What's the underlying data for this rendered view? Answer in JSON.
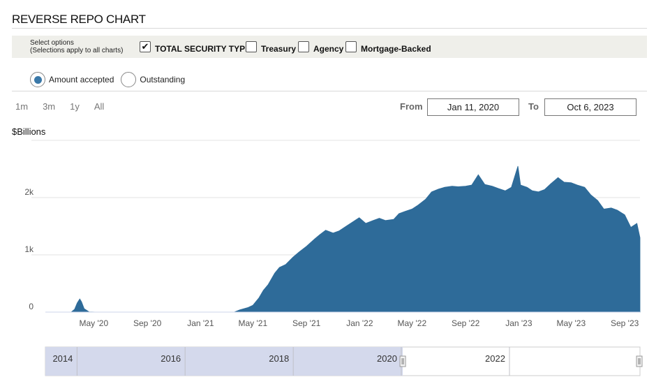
{
  "page": {
    "title": "REVERSE REPO CHART"
  },
  "options": {
    "caption_line1": "Select options",
    "caption_line2": "(Selections apply to all charts)",
    "checkboxes": [
      {
        "label": "TOTAL SECURITY TYPES",
        "checked": true
      },
      {
        "label": "Treasury",
        "checked": false
      },
      {
        "label": "Agency",
        "checked": false
      },
      {
        "label": "Mortgage-Backed",
        "checked": false
      }
    ],
    "check_glyph": "✔"
  },
  "radios": [
    {
      "label": "Amount accepted",
      "selected": true
    },
    {
      "label": "Outstanding",
      "selected": false
    }
  ],
  "range_buttons": [
    "1m",
    "3m",
    "1y",
    "All"
  ],
  "date_range": {
    "from_label": "From",
    "from_value": "Jan 11, 2020",
    "to_label": "To",
    "to_value": "Oct 6, 2023"
  },
  "colors": {
    "series": "#2e6b99",
    "navigator_selected": "#d4d9ec",
    "grid": "#e3e3e3"
  },
  "chart_data": {
    "type": "area",
    "title": "",
    "ylabel": "$Billions",
    "xlabel": "",
    "ylim": [
      0,
      3000
    ],
    "x_range": [
      "2020-01-11",
      "2023-10-06"
    ],
    "y_ticks": [
      {
        "value": 0,
        "label": "0"
      },
      {
        "value": 1000,
        "label": "1k"
      },
      {
        "value": 2000,
        "label": "2k"
      }
    ],
    "x_ticks": [
      {
        "date": "2020-05-01",
        "label": "May '20"
      },
      {
        "date": "2020-09-01",
        "label": "Sep '20"
      },
      {
        "date": "2021-01-01",
        "label": "Jan '21"
      },
      {
        "date": "2021-05-01",
        "label": "May '21"
      },
      {
        "date": "2021-09-01",
        "label": "Sep '21"
      },
      {
        "date": "2022-01-01",
        "label": "Jan '22"
      },
      {
        "date": "2022-05-01",
        "label": "May '22"
      },
      {
        "date": "2022-09-01",
        "label": "Sep '22"
      },
      {
        "date": "2023-01-01",
        "label": "Jan '23"
      },
      {
        "date": "2023-05-01",
        "label": "May '23"
      },
      {
        "date": "2023-09-01",
        "label": "Sep '23"
      }
    ],
    "grid": true,
    "series": [
      {
        "points": [
          [
            "2020-01-11",
            0
          ],
          [
            "2020-03-10",
            0
          ],
          [
            "2020-03-18",
            50
          ],
          [
            "2020-03-24",
            160
          ],
          [
            "2020-03-30",
            230
          ],
          [
            "2020-04-03",
            180
          ],
          [
            "2020-04-09",
            60
          ],
          [
            "2020-04-20",
            5
          ],
          [
            "2020-05-10",
            0
          ],
          [
            "2021-01-01",
            0
          ],
          [
            "2021-03-20",
            2
          ],
          [
            "2021-04-01",
            40
          ],
          [
            "2021-04-20",
            80
          ],
          [
            "2021-05-01",
            120
          ],
          [
            "2021-05-15",
            250
          ],
          [
            "2021-05-25",
            380
          ],
          [
            "2021-06-05",
            480
          ],
          [
            "2021-06-20",
            680
          ],
          [
            "2021-07-01",
            780
          ],
          [
            "2021-07-15",
            830
          ],
          [
            "2021-08-01",
            960
          ],
          [
            "2021-08-15",
            1050
          ],
          [
            "2021-09-01",
            1150
          ],
          [
            "2021-09-20",
            1280
          ],
          [
            "2021-10-01",
            1350
          ],
          [
            "2021-10-15",
            1430
          ],
          [
            "2021-11-01",
            1380
          ],
          [
            "2021-11-15",
            1420
          ],
          [
            "2021-12-01",
            1500
          ],
          [
            "2021-12-31",
            1650
          ],
          [
            "2022-01-15",
            1550
          ],
          [
            "2022-02-01",
            1600
          ],
          [
            "2022-02-15",
            1640
          ],
          [
            "2022-03-01",
            1600
          ],
          [
            "2022-03-20",
            1620
          ],
          [
            "2022-04-01",
            1720
          ],
          [
            "2022-04-15",
            1760
          ],
          [
            "2022-05-01",
            1800
          ],
          [
            "2022-05-15",
            1870
          ],
          [
            "2022-06-01",
            1970
          ],
          [
            "2022-06-15",
            2100
          ],
          [
            "2022-07-01",
            2150
          ],
          [
            "2022-07-15",
            2180
          ],
          [
            "2022-08-01",
            2200
          ],
          [
            "2022-08-15",
            2190
          ],
          [
            "2022-09-01",
            2200
          ],
          [
            "2022-09-15",
            2220
          ],
          [
            "2022-09-30",
            2400
          ],
          [
            "2022-10-15",
            2230
          ],
          [
            "2022-11-01",
            2200
          ],
          [
            "2022-11-15",
            2160
          ],
          [
            "2022-12-01",
            2120
          ],
          [
            "2022-12-15",
            2180
          ],
          [
            "2022-12-30",
            2550
          ],
          [
            "2023-01-05",
            2220
          ],
          [
            "2023-01-20",
            2180
          ],
          [
            "2023-02-01",
            2120
          ],
          [
            "2023-02-15",
            2100
          ],
          [
            "2023-03-01",
            2140
          ],
          [
            "2023-03-15",
            2240
          ],
          [
            "2023-04-01",
            2350
          ],
          [
            "2023-04-15",
            2270
          ],
          [
            "2023-05-01",
            2260
          ],
          [
            "2023-05-15",
            2220
          ],
          [
            "2023-06-01",
            2180
          ],
          [
            "2023-06-15",
            2050
          ],
          [
            "2023-07-01",
            1950
          ],
          [
            "2023-07-15",
            1800
          ],
          [
            "2023-08-01",
            1820
          ],
          [
            "2023-08-15",
            1780
          ],
          [
            "2023-09-01",
            1700
          ],
          [
            "2023-09-15",
            1480
          ],
          [
            "2023-09-29",
            1550
          ],
          [
            "2023-10-06",
            1300
          ]
        ]
      }
    ]
  },
  "navigator": {
    "year_labels": [
      {
        "date": "2014-01-01",
        "label": "2014"
      },
      {
        "date": "2016-01-01",
        "label": "2016"
      },
      {
        "date": "2018-01-01",
        "label": "2018"
      },
      {
        "date": "2020-01-01",
        "label": "2020"
      },
      {
        "date": "2022-01-01",
        "label": "2022"
      }
    ],
    "visible_range": [
      "2013-06-01",
      "2024-06-01"
    ],
    "selected_range": [
      "2013-06-01",
      "2020-01-11"
    ]
  }
}
